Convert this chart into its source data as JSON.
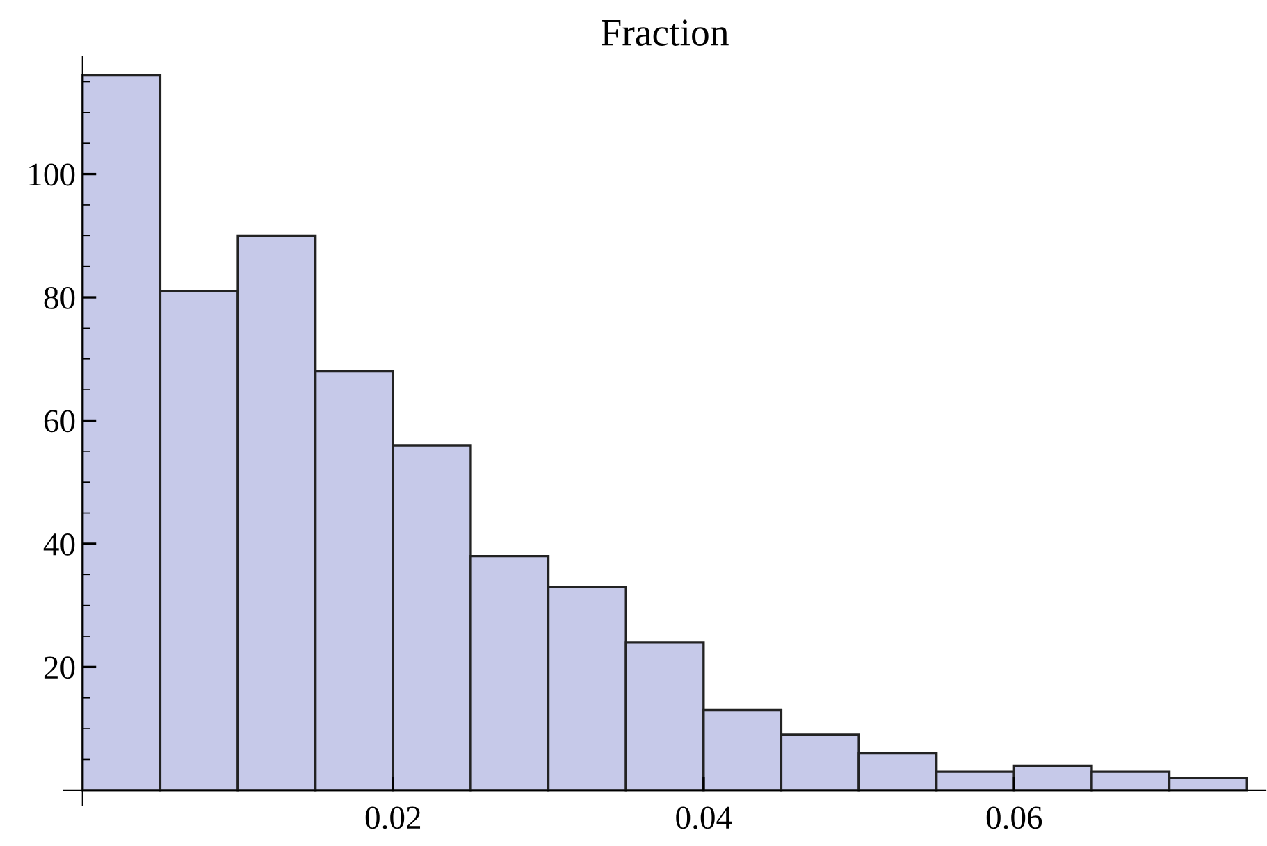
{
  "chart_data": {
    "type": "histogram",
    "title": "Fraction",
    "bins": [
      0,
      0.005,
      0.01,
      0.015,
      0.02,
      0.025,
      0.03,
      0.035,
      0.04,
      0.045,
      0.05,
      0.055,
      0.06,
      0.065,
      0.07,
      0.075
    ],
    "values": [
      116,
      81,
      90,
      68,
      56,
      38,
      33,
      24,
      13,
      9,
      6,
      3,
      4,
      3,
      2
    ],
    "color": "#c6c9e9",
    "xlim": [
      -0.0012,
      0.0762
    ],
    "ylim": [
      -2.5,
      119
    ],
    "xticks": [
      0.02,
      0.04,
      0.06
    ],
    "yticks": [
      20,
      40,
      60,
      80,
      100
    ],
    "grid": false
  }
}
